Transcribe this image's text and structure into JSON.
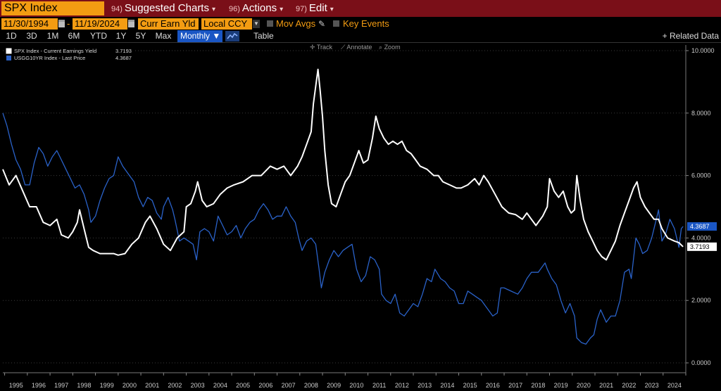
{
  "header": {
    "ticker": "SPX Index",
    "menus": [
      {
        "num": "94)",
        "label": "Suggested Charts"
      },
      {
        "num": "96)",
        "label": "Actions"
      },
      {
        "num": "97)",
        "label": "Edit"
      }
    ]
  },
  "controls": {
    "start_date": "11/30/1994",
    "end_date": "11/19/2024",
    "dash": "-",
    "field": "Curr Earn Yld",
    "currency": "Local CCY",
    "mov_avgs": "Mov Avgs",
    "key_events": "Key Events"
  },
  "periods": [
    "1D",
    "3D",
    "1M",
    "6M",
    "YTD",
    "1Y",
    "5Y",
    "Max"
  ],
  "frequency": "Monthly",
  "table_label": "Table",
  "related_data": "+ Related Data",
  "toolbar": {
    "track": "Track",
    "annotate": "Annotate",
    "zoom": "Zoom"
  },
  "colors": {
    "topbar": "#7a0f18",
    "orange": "#f39c12",
    "spx": "#ffffff",
    "ust": "#2a62c9",
    "bg": "#000000"
  },
  "chart_data": {
    "type": "line",
    "ylim": [
      0,
      10
    ],
    "grid": true,
    "legend_position": "top-left",
    "y_ticks": [
      "10.0000",
      "8.0000",
      "6.0000",
      "4.0000",
      "2.0000",
      "0.0000"
    ],
    "x_ticks": [
      "1995",
      "1996",
      "1997",
      "1998",
      "1999",
      "2000",
      "2001",
      "2002",
      "2003",
      "2004",
      "2005",
      "2006",
      "2007",
      "2008",
      "2009",
      "2010",
      "2011",
      "2012",
      "2013",
      "2014",
      "2015",
      "2016",
      "2017",
      "2018",
      "2019",
      "2020",
      "2021",
      "2022",
      "2023",
      "2024"
    ],
    "series": [
      {
        "name": "SPX Index - Current Earnings Yield",
        "last_value": "3.7193",
        "color": "#ffffff",
        "points": [
          [
            1994.92,
            6.2
          ],
          [
            1995.2,
            5.7
          ],
          [
            1995.5,
            6.0
          ],
          [
            1995.8,
            5.5
          ],
          [
            1996.1,
            5.0
          ],
          [
            1996.4,
            5.0
          ],
          [
            1996.7,
            4.5
          ],
          [
            1997.0,
            4.4
          ],
          [
            1997.3,
            4.6
          ],
          [
            1997.5,
            4.1
          ],
          [
            1997.8,
            4.0
          ],
          [
            1998.0,
            4.2
          ],
          [
            1998.2,
            4.5
          ],
          [
            1998.3,
            4.9
          ],
          [
            1998.5,
            4.3
          ],
          [
            1998.7,
            3.7
          ],
          [
            1998.9,
            3.6
          ],
          [
            1999.2,
            3.5
          ],
          [
            1999.5,
            3.5
          ],
          [
            1999.8,
            3.5
          ],
          [
            2000.0,
            3.45
          ],
          [
            2000.3,
            3.5
          ],
          [
            2000.6,
            3.8
          ],
          [
            2000.9,
            4.0
          ],
          [
            2001.2,
            4.5
          ],
          [
            2001.4,
            4.7
          ],
          [
            2001.7,
            4.3
          ],
          [
            2002.0,
            3.8
          ],
          [
            2002.3,
            3.6
          ],
          [
            2002.6,
            4.0
          ],
          [
            2002.9,
            4.2
          ],
          [
            2003.0,
            5.0
          ],
          [
            2003.2,
            5.1
          ],
          [
            2003.4,
            5.5
          ],
          [
            2003.5,
            5.8
          ],
          [
            2003.7,
            5.2
          ],
          [
            2003.9,
            5.0
          ],
          [
            2004.2,
            5.1
          ],
          [
            2004.5,
            5.4
          ],
          [
            2004.8,
            5.6
          ],
          [
            2005.1,
            5.7
          ],
          [
            2005.5,
            5.8
          ],
          [
            2005.9,
            6.0
          ],
          [
            2006.3,
            6.0
          ],
          [
            2006.7,
            6.3
          ],
          [
            2007.0,
            6.2
          ],
          [
            2007.3,
            6.3
          ],
          [
            2007.6,
            6.0
          ],
          [
            2007.9,
            6.3
          ],
          [
            2008.1,
            6.6
          ],
          [
            2008.3,
            7.0
          ],
          [
            2008.5,
            7.4
          ],
          [
            2008.6,
            8.3
          ],
          [
            2008.8,
            9.4
          ],
          [
            2008.9,
            8.7
          ],
          [
            2009.0,
            7.9
          ],
          [
            2009.1,
            6.8
          ],
          [
            2009.25,
            5.7
          ],
          [
            2009.4,
            5.1
          ],
          [
            2009.6,
            5.0
          ],
          [
            2009.8,
            5.4
          ],
          [
            2010.0,
            5.8
          ],
          [
            2010.2,
            6.0
          ],
          [
            2010.4,
            6.4
          ],
          [
            2010.6,
            6.8
          ],
          [
            2010.8,
            6.4
          ],
          [
            2011.0,
            6.5
          ],
          [
            2011.2,
            7.2
          ],
          [
            2011.35,
            7.9
          ],
          [
            2011.5,
            7.5
          ],
          [
            2011.7,
            7.2
          ],
          [
            2011.9,
            7.0
          ],
          [
            2012.1,
            7.1
          ],
          [
            2012.3,
            7.0
          ],
          [
            2012.5,
            7.1
          ],
          [
            2012.7,
            6.8
          ],
          [
            2012.9,
            6.7
          ],
          [
            2013.1,
            6.5
          ],
          [
            2013.3,
            6.3
          ],
          [
            2013.6,
            6.2
          ],
          [
            2013.9,
            6.0
          ],
          [
            2014.1,
            6.0
          ],
          [
            2014.3,
            5.8
          ],
          [
            2014.6,
            5.7
          ],
          [
            2014.9,
            5.6
          ],
          [
            2015.1,
            5.6
          ],
          [
            2015.4,
            5.7
          ],
          [
            2015.7,
            5.9
          ],
          [
            2015.9,
            5.7
          ],
          [
            2016.1,
            6.0
          ],
          [
            2016.3,
            5.8
          ],
          [
            2016.6,
            5.4
          ],
          [
            2016.9,
            5.0
          ],
          [
            2017.2,
            4.8
          ],
          [
            2017.5,
            4.75
          ],
          [
            2017.8,
            4.6
          ],
          [
            2018.0,
            4.8
          ],
          [
            2018.2,
            4.6
          ],
          [
            2018.4,
            4.4
          ],
          [
            2018.7,
            4.7
          ],
          [
            2018.9,
            5.0
          ],
          [
            2019.0,
            5.9
          ],
          [
            2019.2,
            5.5
          ],
          [
            2019.4,
            5.3
          ],
          [
            2019.6,
            5.5
          ],
          [
            2019.8,
            5.0
          ],
          [
            2019.95,
            4.8
          ],
          [
            2020.1,
            4.9
          ],
          [
            2020.2,
            6.0
          ],
          [
            2020.35,
            5.2
          ],
          [
            2020.5,
            4.6
          ],
          [
            2020.7,
            4.2
          ],
          [
            2020.9,
            3.9
          ],
          [
            2021.1,
            3.6
          ],
          [
            2021.3,
            3.4
          ],
          [
            2021.5,
            3.3
          ],
          [
            2021.7,
            3.6
          ],
          [
            2021.9,
            3.9
          ],
          [
            2022.1,
            4.4
          ],
          [
            2022.3,
            4.8
          ],
          [
            2022.5,
            5.2
          ],
          [
            2022.7,
            5.6
          ],
          [
            2022.85,
            5.8
          ],
          [
            2023.0,
            5.3
          ],
          [
            2023.2,
            5.0
          ],
          [
            2023.4,
            4.8
          ],
          [
            2023.6,
            4.6
          ],
          [
            2023.8,
            4.6
          ],
          [
            2023.95,
            4.3
          ],
          [
            2024.2,
            4.0
          ],
          [
            2024.5,
            3.9
          ],
          [
            2024.7,
            3.85
          ],
          [
            2024.88,
            3.72
          ]
        ]
      },
      {
        "name": "USGG10YR Index - Last Price",
        "last_value": "4.3687",
        "color": "#2a62c9",
        "points": [
          [
            1994.92,
            8.0
          ],
          [
            1995.1,
            7.6
          ],
          [
            1995.3,
            7.0
          ],
          [
            1995.5,
            6.5
          ],
          [
            1995.7,
            6.2
          ],
          [
            1995.9,
            5.7
          ],
          [
            1996.1,
            5.7
          ],
          [
            1996.3,
            6.4
          ],
          [
            1996.5,
            6.9
          ],
          [
            1996.7,
            6.7
          ],
          [
            1996.9,
            6.3
          ],
          [
            1997.1,
            6.6
          ],
          [
            1997.3,
            6.8
          ],
          [
            1997.5,
            6.5
          ],
          [
            1997.7,
            6.2
          ],
          [
            1997.9,
            5.9
          ],
          [
            1998.1,
            5.6
          ],
          [
            1998.3,
            5.7
          ],
          [
            1998.5,
            5.4
          ],
          [
            1998.7,
            4.9
          ],
          [
            1998.8,
            4.5
          ],
          [
            1999.0,
            4.7
          ],
          [
            1999.2,
            5.2
          ],
          [
            1999.4,
            5.6
          ],
          [
            1999.6,
            5.9
          ],
          [
            1999.8,
            6.0
          ],
          [
            2000.0,
            6.6
          ],
          [
            2000.2,
            6.3
          ],
          [
            2000.5,
            6.0
          ],
          [
            2000.7,
            5.8
          ],
          [
            2000.9,
            5.3
          ],
          [
            2001.1,
            5.0
          ],
          [
            2001.3,
            5.3
          ],
          [
            2001.5,
            5.2
          ],
          [
            2001.7,
            4.8
          ],
          [
            2001.9,
            4.6
          ],
          [
            2002.0,
            5.0
          ],
          [
            2002.2,
            5.3
          ],
          [
            2002.4,
            4.9
          ],
          [
            2002.5,
            4.6
          ],
          [
            2002.7,
            3.9
          ],
          [
            2002.9,
            4.0
          ],
          [
            2003.1,
            3.9
          ],
          [
            2003.3,
            3.8
          ],
          [
            2003.45,
            3.3
          ],
          [
            2003.6,
            4.2
          ],
          [
            2003.8,
            4.3
          ],
          [
            2004.0,
            4.2
          ],
          [
            2004.2,
            3.9
          ],
          [
            2004.4,
            4.7
          ],
          [
            2004.6,
            4.4
          ],
          [
            2004.8,
            4.1
          ],
          [
            2005.0,
            4.2
          ],
          [
            2005.2,
            4.4
          ],
          [
            2005.4,
            4.0
          ],
          [
            2005.6,
            4.3
          ],
          [
            2005.8,
            4.5
          ],
          [
            2006.0,
            4.6
          ],
          [
            2006.2,
            4.9
          ],
          [
            2006.4,
            5.1
          ],
          [
            2006.6,
            4.9
          ],
          [
            2006.8,
            4.6
          ],
          [
            2007.0,
            4.7
          ],
          [
            2007.2,
            4.7
          ],
          [
            2007.4,
            5.0
          ],
          [
            2007.6,
            4.7
          ],
          [
            2007.8,
            4.5
          ],
          [
            2007.95,
            4.0
          ],
          [
            2008.1,
            3.6
          ],
          [
            2008.3,
            3.9
          ],
          [
            2008.5,
            4.0
          ],
          [
            2008.7,
            3.8
          ],
          [
            2008.85,
            3.0
          ],
          [
            2008.95,
            2.4
          ],
          [
            2009.1,
            2.9
          ],
          [
            2009.3,
            3.3
          ],
          [
            2009.5,
            3.6
          ],
          [
            2009.7,
            3.4
          ],
          [
            2009.9,
            3.6
          ],
          [
            2010.1,
            3.7
          ],
          [
            2010.3,
            3.8
          ],
          [
            2010.5,
            3.0
          ],
          [
            2010.7,
            2.6
          ],
          [
            2010.9,
            2.8
          ],
          [
            2011.1,
            3.4
          ],
          [
            2011.3,
            3.3
          ],
          [
            2011.5,
            3.0
          ],
          [
            2011.6,
            2.2
          ],
          [
            2011.8,
            2.0
          ],
          [
            2012.0,
            1.9
          ],
          [
            2012.2,
            2.2
          ],
          [
            2012.4,
            1.6
          ],
          [
            2012.6,
            1.5
          ],
          [
            2012.8,
            1.7
          ],
          [
            2013.0,
            1.9
          ],
          [
            2013.2,
            1.8
          ],
          [
            2013.4,
            2.2
          ],
          [
            2013.6,
            2.7
          ],
          [
            2013.8,
            2.6
          ],
          [
            2013.95,
            3.0
          ],
          [
            2014.2,
            2.7
          ],
          [
            2014.4,
            2.6
          ],
          [
            2014.6,
            2.4
          ],
          [
            2014.8,
            2.3
          ],
          [
            2015.0,
            1.9
          ],
          [
            2015.2,
            1.9
          ],
          [
            2015.4,
            2.3
          ],
          [
            2015.6,
            2.2
          ],
          [
            2015.8,
            2.1
          ],
          [
            2016.0,
            2.0
          ],
          [
            2016.2,
            1.8
          ],
          [
            2016.5,
            1.5
          ],
          [
            2016.7,
            1.6
          ],
          [
            2016.85,
            2.4
          ],
          [
            2017.0,
            2.4
          ],
          [
            2017.3,
            2.3
          ],
          [
            2017.6,
            2.2
          ],
          [
            2017.8,
            2.4
          ],
          [
            2018.0,
            2.7
          ],
          [
            2018.2,
            2.9
          ],
          [
            2018.5,
            2.9
          ],
          [
            2018.8,
            3.2
          ],
          [
            2018.9,
            3.0
          ],
          [
            2019.1,
            2.7
          ],
          [
            2019.3,
            2.5
          ],
          [
            2019.5,
            2.0
          ],
          [
            2019.7,
            1.6
          ],
          [
            2019.9,
            1.9
          ],
          [
            2020.1,
            1.5
          ],
          [
            2020.2,
            0.8
          ],
          [
            2020.4,
            0.65
          ],
          [
            2020.6,
            0.6
          ],
          [
            2020.8,
            0.8
          ],
          [
            2020.95,
            0.9
          ],
          [
            2021.1,
            1.4
          ],
          [
            2021.25,
            1.7
          ],
          [
            2021.5,
            1.3
          ],
          [
            2021.7,
            1.5
          ],
          [
            2021.9,
            1.5
          ],
          [
            2022.1,
            2.0
          ],
          [
            2022.3,
            2.9
          ],
          [
            2022.5,
            3.0
          ],
          [
            2022.6,
            2.7
          ],
          [
            2022.8,
            4.0
          ],
          [
            2022.95,
            3.8
          ],
          [
            2023.1,
            3.5
          ],
          [
            2023.3,
            3.6
          ],
          [
            2023.5,
            4.0
          ],
          [
            2023.7,
            4.6
          ],
          [
            2023.8,
            4.9
          ],
          [
            2023.95,
            3.9
          ],
          [
            2024.1,
            4.1
          ],
          [
            2024.3,
            4.6
          ],
          [
            2024.5,
            4.3
          ],
          [
            2024.7,
            3.7
          ],
          [
            2024.8,
            4.3
          ],
          [
            2024.88,
            4.37
          ]
        ]
      }
    ]
  }
}
